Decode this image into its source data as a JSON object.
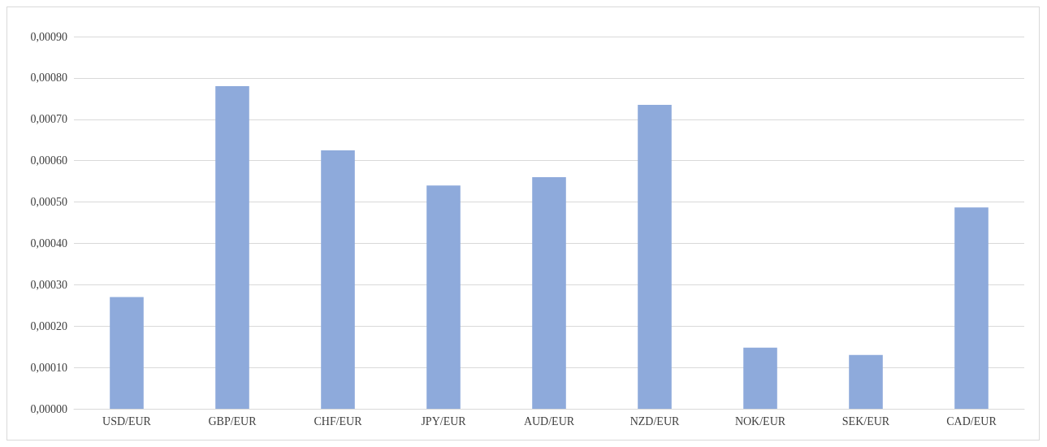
{
  "chart_data": {
    "type": "bar",
    "categories": [
      "USD/EUR",
      "GBP/EUR",
      "CHF/EUR",
      "JPY/EUR",
      "AUD/EUR",
      "NZD/EUR",
      "NOK/EUR",
      "SEK/EUR",
      "CAD/EUR"
    ],
    "values": [
      0.00027,
      0.00078,
      0.000625,
      0.00054,
      0.00056,
      0.000735,
      0.000148,
      0.00013,
      0.000487
    ],
    "color": "#8eaadb",
    "ylim": [
      0,
      0.0009
    ],
    "yticks": [
      {
        "value": 0,
        "label": "0,00000"
      },
      {
        "value": 0.0001,
        "label": "0,00010"
      },
      {
        "value": 0.0002,
        "label": "0,00020"
      },
      {
        "value": 0.0003,
        "label": "0,00030"
      },
      {
        "value": 0.0004,
        "label": "0,00040"
      },
      {
        "value": 0.0005,
        "label": "0,00050"
      },
      {
        "value": 0.0006,
        "label": "0,00060"
      },
      {
        "value": 0.0007,
        "label": "0,00070"
      },
      {
        "value": 0.0008,
        "label": "0,00080"
      },
      {
        "value": 0.0009,
        "label": "0,00090"
      }
    ],
    "grid": "y"
  }
}
